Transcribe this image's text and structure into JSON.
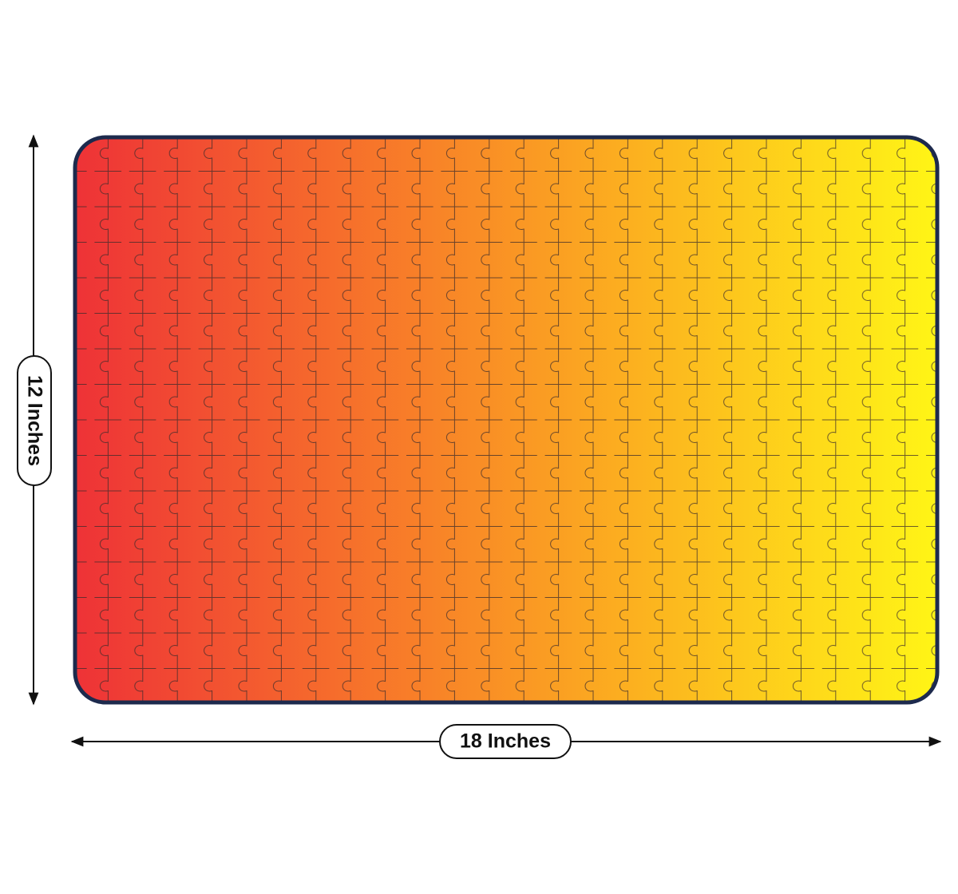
{
  "dimensions": {
    "height": "12 Inches",
    "width": "18 Inches"
  }
}
